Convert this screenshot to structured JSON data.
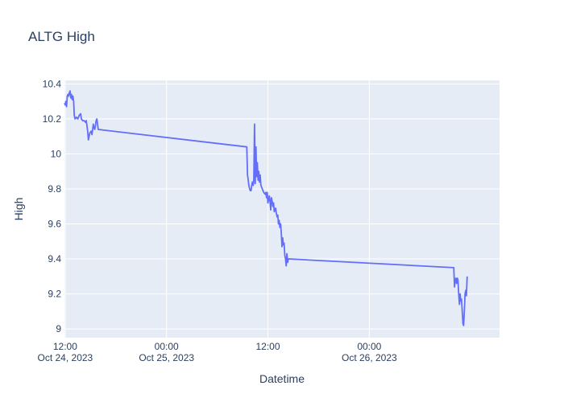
{
  "chart_data": {
    "type": "line",
    "title": "ALTG High",
    "xlabel": "Datetime",
    "ylabel": "High",
    "ylim": [
      8.95,
      10.42
    ],
    "xlim": [
      "2023-10-24 11:55",
      "2023-10-26 15:25"
    ],
    "grid": true,
    "y_ticks": [
      "9",
      "9.2",
      "9.4",
      "9.6",
      "9.8",
      "10",
      "10.2",
      "10.4"
    ],
    "y_tick_values": [
      9,
      9.2,
      9.4,
      9.6,
      9.8,
      10,
      10.2,
      10.4
    ],
    "x_ticks": [
      {
        "line1": "12:00",
        "line2": "Oct 24, 2023",
        "value": "2023-10-24 12:00"
      },
      {
        "line1": "00:00",
        "line2": "Oct 25, 2023",
        "value": "2023-10-25 00:00"
      },
      {
        "line1": "12:00",
        "line2": "",
        "value": "2023-10-25 12:00"
      },
      {
        "line1": "00:00",
        "line2": "Oct 26, 2023",
        "value": "2023-10-26 00:00"
      }
    ],
    "series": [
      {
        "color": "#636efa",
        "points": [
          [
            "2023-10-24 11:55",
            10.29
          ],
          [
            "2023-10-24 12:00",
            10.28
          ],
          [
            "2023-10-24 12:05",
            10.3
          ],
          [
            "2023-10-24 12:10",
            10.27
          ],
          [
            "2023-10-24 12:15",
            10.33
          ],
          [
            "2023-10-24 12:20",
            10.34
          ],
          [
            "2023-10-24 12:25",
            10.33
          ],
          [
            "2023-10-24 12:30",
            10.35
          ],
          [
            "2023-10-24 12:35",
            10.36
          ],
          [
            "2023-10-24 12:40",
            10.32
          ],
          [
            "2023-10-24 12:45",
            10.34
          ],
          [
            "2023-10-24 12:50",
            10.31
          ],
          [
            "2023-10-24 12:55",
            10.33
          ],
          [
            "2023-10-24 13:00",
            10.3
          ],
          [
            "2023-10-24 13:05",
            10.22
          ],
          [
            "2023-10-24 13:10",
            10.2
          ],
          [
            "2023-10-24 13:20",
            10.21
          ],
          [
            "2023-10-24 13:30",
            10.2
          ],
          [
            "2023-10-24 13:40",
            10.22
          ],
          [
            "2023-10-24 13:50",
            10.23
          ],
          [
            "2023-10-24 13:55",
            10.2
          ],
          [
            "2023-10-24 14:05",
            10.19
          ],
          [
            "2023-10-24 14:15",
            10.19
          ],
          [
            "2023-10-24 14:25",
            10.18
          ],
          [
            "2023-10-24 14:30",
            10.19
          ],
          [
            "2023-10-24 14:40",
            10.13
          ],
          [
            "2023-10-24 14:45",
            10.08
          ],
          [
            "2023-10-24 14:50",
            10.1
          ],
          [
            "2023-10-24 14:55",
            10.12
          ],
          [
            "2023-10-24 15:05",
            10.13
          ],
          [
            "2023-10-24 15:10",
            10.11
          ],
          [
            "2023-10-24 15:15",
            10.14
          ],
          [
            "2023-10-24 15:20",
            10.17
          ],
          [
            "2023-10-24 15:25",
            10.15
          ],
          [
            "2023-10-24 15:30",
            10.14
          ],
          [
            "2023-10-24 15:35",
            10.16
          ],
          [
            "2023-10-24 15:40",
            10.19
          ],
          [
            "2023-10-24 15:45",
            10.2
          ],
          [
            "2023-10-24 15:50",
            10.17
          ],
          [
            "2023-10-24 15:55",
            10.14
          ],
          [
            "2023-10-25 09:30",
            10.04
          ],
          [
            "2023-10-25 09:35",
            9.88
          ],
          [
            "2023-10-25 09:40",
            9.85
          ],
          [
            "2023-10-25 09:45",
            9.82
          ],
          [
            "2023-10-25 09:50",
            9.8
          ],
          [
            "2023-10-25 09:55",
            9.79
          ],
          [
            "2023-10-25 10:00",
            9.79
          ],
          [
            "2023-10-25 10:05",
            9.82
          ],
          [
            "2023-10-25 10:10",
            9.84
          ],
          [
            "2023-10-25 10:15",
            9.82
          ],
          [
            "2023-10-25 10:20",
            9.85
          ],
          [
            "2023-10-25 10:25",
            10.17
          ],
          [
            "2023-10-25 10:30",
            9.83
          ],
          [
            "2023-10-25 10:35",
            10.04
          ],
          [
            "2023-10-25 10:40",
            9.87
          ],
          [
            "2023-10-25 10:45",
            9.95
          ],
          [
            "2023-10-25 10:50",
            9.85
          ],
          [
            "2023-10-25 10:55",
            9.9
          ],
          [
            "2023-10-25 11:00",
            9.84
          ],
          [
            "2023-10-25 11:05",
            9.88
          ],
          [
            "2023-10-25 11:10",
            9.82
          ],
          [
            "2023-10-25 11:30",
            9.78
          ],
          [
            "2023-10-25 11:40",
            9.77
          ],
          [
            "2023-10-25 11:45",
            9.78
          ],
          [
            "2023-10-25 11:50",
            9.75
          ],
          [
            "2023-10-25 11:55",
            9.78
          ],
          [
            "2023-10-25 12:00",
            9.72
          ],
          [
            "2023-10-25 12:10",
            9.76
          ],
          [
            "2023-10-25 12:15",
            9.73
          ],
          [
            "2023-10-25 12:20",
            9.68
          ],
          [
            "2023-10-25 12:25",
            9.75
          ],
          [
            "2023-10-25 12:30",
            9.73
          ],
          [
            "2023-10-25 12:35",
            9.7
          ],
          [
            "2023-10-25 12:40",
            9.72
          ],
          [
            "2023-10-25 12:45",
            9.67
          ],
          [
            "2023-10-25 12:55",
            9.69
          ],
          [
            "2023-10-25 13:00",
            9.66
          ],
          [
            "2023-10-25 13:05",
            9.64
          ],
          [
            "2023-10-25 13:10",
            9.65
          ],
          [
            "2023-10-25 13:15",
            9.6
          ],
          [
            "2023-10-25 13:20",
            9.62
          ],
          [
            "2023-10-25 13:25",
            9.58
          ],
          [
            "2023-10-25 13:30",
            9.6
          ],
          [
            "2023-10-25 13:35",
            9.55
          ],
          [
            "2023-10-25 13:40",
            9.47
          ],
          [
            "2023-10-25 13:45",
            9.52
          ],
          [
            "2023-10-25 13:50",
            9.48
          ],
          [
            "2023-10-25 13:55",
            9.49
          ],
          [
            "2023-10-25 14:00",
            9.42
          ],
          [
            "2023-10-25 14:05",
            9.4
          ],
          [
            "2023-10-25 14:10",
            9.36
          ],
          [
            "2023-10-25 14:15",
            9.43
          ],
          [
            "2023-10-25 14:20",
            9.38
          ],
          [
            "2023-10-25 14:25",
            9.4
          ],
          [
            "2023-10-26 10:00",
            9.35
          ],
          [
            "2023-10-26 10:05",
            9.24
          ],
          [
            "2023-10-26 10:10",
            9.28
          ],
          [
            "2023-10-26 10:15",
            9.29
          ],
          [
            "2023-10-26 10:20",
            9.26
          ],
          [
            "2023-10-26 10:25",
            9.29
          ],
          [
            "2023-10-26 10:30",
            9.28
          ],
          [
            "2023-10-26 10:35",
            9.2
          ],
          [
            "2023-10-26 10:40",
            9.14
          ],
          [
            "2023-10-26 10:45",
            9.2
          ],
          [
            "2023-10-26 10:50",
            9.16
          ],
          [
            "2023-10-26 10:55",
            9.17
          ],
          [
            "2023-10-26 11:00",
            9.1
          ],
          [
            "2023-10-26 11:05",
            9.03
          ],
          [
            "2023-10-26 11:10",
            9.02
          ],
          [
            "2023-10-26 11:15",
            9.1
          ],
          [
            "2023-10-26 11:20",
            9.2
          ],
          [
            "2023-10-26 11:25",
            9.22
          ],
          [
            "2023-10-26 11:30",
            9.19
          ],
          [
            "2023-10-26 11:35",
            9.3
          ]
        ]
      }
    ]
  },
  "colors": {
    "plot_bg": "#e5ecf6",
    "grid": "#ffffff",
    "text": "#2a3f5f",
    "line": "#636efa"
  }
}
